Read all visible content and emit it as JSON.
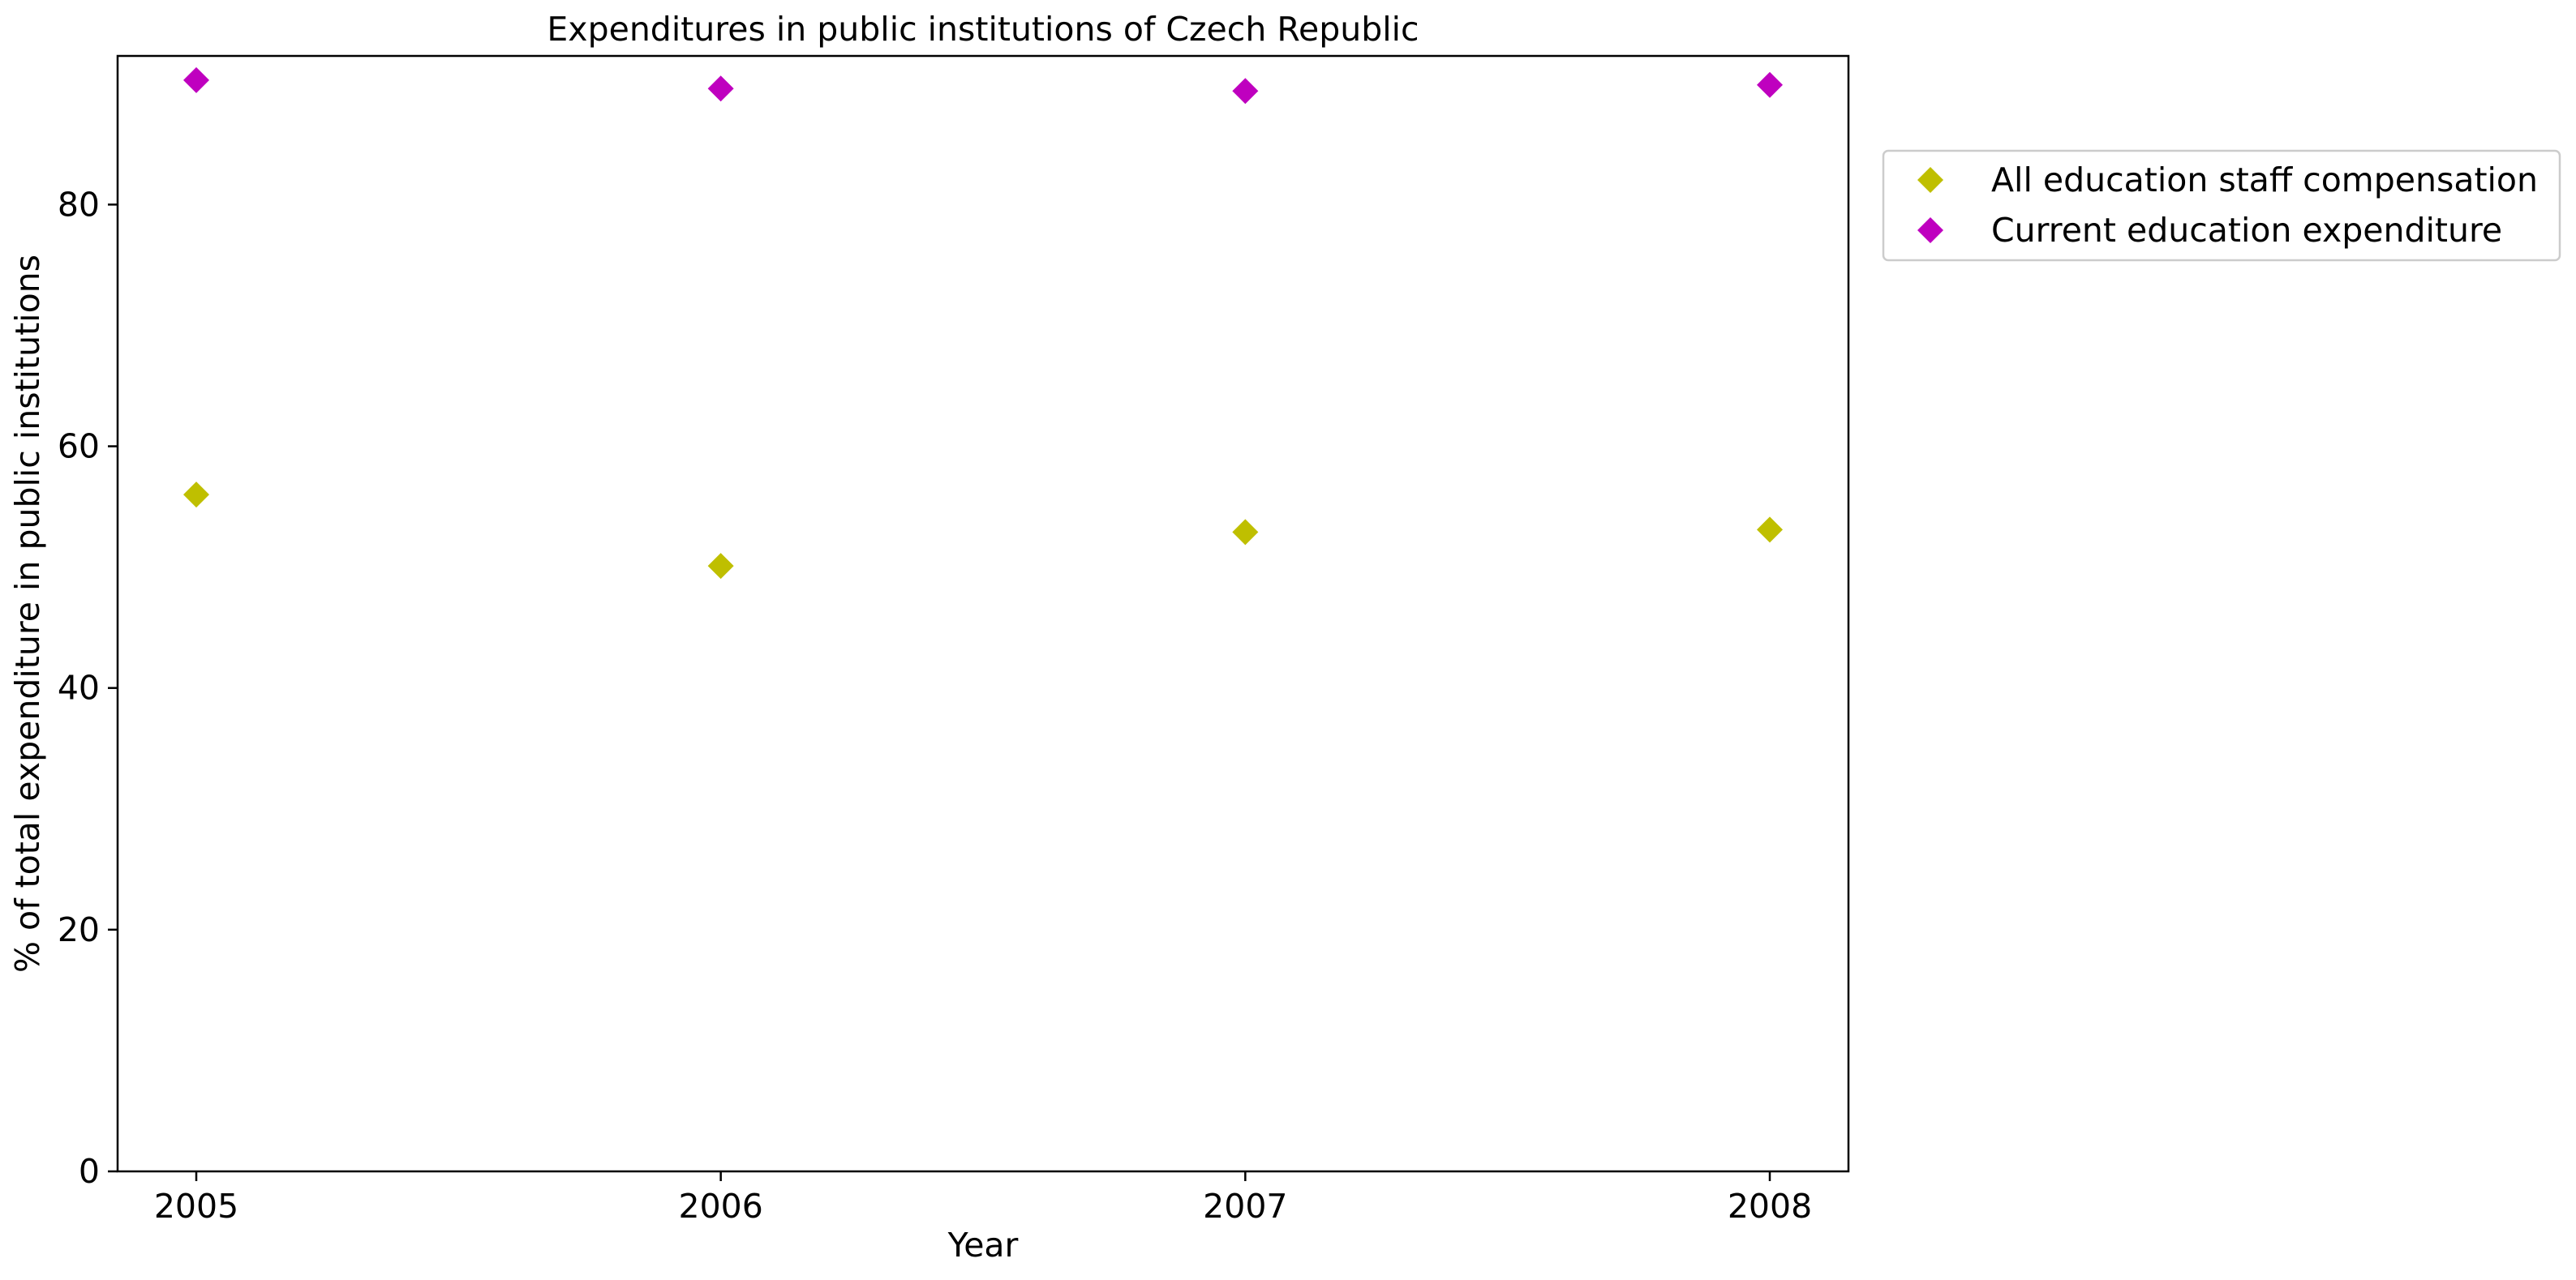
{
  "chart_data": {
    "type": "scatter",
    "title": "Expenditures in public institutions of Czech Republic",
    "xlabel": "Year",
    "ylabel": "% of total expenditure in public institutions",
    "x": [
      "2005",
      "2006",
      "2007",
      "2008"
    ],
    "xlim": [
      2004.85,
      2008.15
    ],
    "ylim": [
      0,
      92.3
    ],
    "yticks": [
      0,
      20,
      40,
      60,
      80
    ],
    "grid": false,
    "legend_position": "outside-right-top",
    "marker": "diamond",
    "series": [
      {
        "name": "All education staff compensation",
        "color": "#bfbf00",
        "values": [
          56.0,
          50.1,
          52.9,
          53.1
        ]
      },
      {
        "name": "Current education expenditure",
        "color": "#bf00bf",
        "values": [
          90.3,
          89.6,
          89.4,
          89.9
        ]
      }
    ]
  }
}
